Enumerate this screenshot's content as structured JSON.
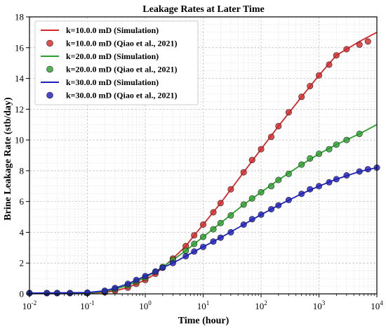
{
  "chart_data": {
    "type": "line",
    "title": "Leakage Rates at Later Time",
    "xlabel": "Time (hour)",
    "ylabel": "Brine Leakage Rate (stb/day)",
    "xscale": "log",
    "xlim": [
      0.01,
      10000
    ],
    "ylim": [
      0,
      18
    ],
    "x_ticks": [
      {
        "base": "10",
        "exp": "-2",
        "value": 0.01
      },
      {
        "base": "10",
        "exp": "-1",
        "value": 0.1
      },
      {
        "base": "10",
        "exp": "0",
        "value": 1
      },
      {
        "base": "10",
        "exp": "1",
        "value": 10
      },
      {
        "base": "10",
        "exp": "2",
        "value": 100
      },
      {
        "base": "10",
        "exp": "3",
        "value": 1000
      },
      {
        "base": "10",
        "exp": "4",
        "value": 10000
      }
    ],
    "y_ticks": [
      "0",
      "2",
      "4",
      "6",
      "8",
      "10",
      "12",
      "14",
      "16",
      "18"
    ],
    "grid": true,
    "legend_position": "top-left",
    "series": [
      {
        "name": "k=10.0.0 mD (Simulation)",
        "kind": "line",
        "color": "#d62728",
        "x": [
          0.01,
          0.1,
          0.2,
          0.3,
          0.5,
          0.7,
          1,
          1.5,
          2,
          3,
          5,
          7,
          10,
          20,
          50,
          100,
          200,
          500,
          1000,
          2000,
          5000,
          10000
        ],
        "y": [
          0.05,
          0.05,
          0.1,
          0.2,
          0.4,
          0.65,
          0.9,
          1.3,
          1.7,
          2.3,
          3.1,
          3.8,
          4.5,
          5.9,
          7.9,
          9.4,
          10.9,
          12.8,
          14.2,
          15.5,
          16.4,
          17.0
        ]
      },
      {
        "name": "k=10.0.0 mD (Qiao et al., 2021)",
        "kind": "scatter",
        "color": "#d62728",
        "x": [
          0.01,
          0.02,
          0.03,
          0.05,
          0.1,
          0.2,
          0.3,
          0.5,
          0.7,
          1,
          1.5,
          2,
          3,
          5,
          7,
          10,
          15,
          20,
          30,
          50,
          70,
          100,
          150,
          200,
          300,
          500,
          700,
          1000,
          1500,
          2000,
          3000,
          5000,
          7000
        ],
        "y": [
          0.05,
          0.05,
          0.05,
          0.05,
          0.05,
          0.1,
          0.2,
          0.4,
          0.65,
          0.9,
          1.3,
          1.7,
          2.3,
          3.1,
          3.8,
          4.5,
          5.3,
          5.9,
          6.8,
          7.9,
          8.7,
          9.4,
          10.2,
          10.9,
          11.8,
          12.8,
          13.5,
          14.2,
          14.9,
          15.5,
          15.9,
          16.2,
          16.4
        ]
      },
      {
        "name": "k=20.0.0 mD (Simulation)",
        "kind": "line",
        "color": "#2ca02c",
        "x": [
          0.01,
          0.1,
          0.2,
          0.3,
          0.5,
          0.7,
          1,
          1.5,
          2,
          3,
          5,
          7,
          10,
          20,
          50,
          100,
          200,
          500,
          1000,
          2000,
          5000,
          10000
        ],
        "y": [
          0.05,
          0.05,
          0.15,
          0.3,
          0.55,
          0.8,
          1.05,
          1.45,
          1.75,
          2.2,
          2.8,
          3.25,
          3.7,
          4.6,
          5.8,
          6.6,
          7.4,
          8.4,
          9.1,
          9.7,
          10.4,
          11.0
        ]
      },
      {
        "name": "k=20.0.0 mD (Qiao et al., 2021)",
        "kind": "scatter",
        "color": "#2ca02c",
        "x": [
          0.01,
          0.02,
          0.03,
          0.05,
          0.1,
          0.2,
          0.3,
          0.5,
          0.7,
          1,
          1.5,
          2,
          3,
          5,
          7,
          10,
          15,
          20,
          30,
          50,
          70,
          100,
          150,
          200,
          300,
          500,
          700,
          1000,
          1500,
          2000,
          3000,
          5000
        ],
        "y": [
          0.05,
          0.05,
          0.05,
          0.05,
          0.05,
          0.15,
          0.3,
          0.55,
          0.8,
          1.05,
          1.45,
          1.75,
          2.2,
          2.8,
          3.25,
          3.7,
          4.2,
          4.6,
          5.1,
          5.8,
          6.2,
          6.6,
          7.0,
          7.4,
          7.8,
          8.4,
          8.8,
          9.1,
          9.4,
          9.7,
          10.0,
          10.4
        ]
      },
      {
        "name": "k=30.0.0 mD (Simulation)",
        "kind": "line",
        "color": "#1f1fbf",
        "x": [
          0.01,
          0.1,
          0.2,
          0.3,
          0.5,
          0.7,
          1,
          1.5,
          2,
          3,
          5,
          7,
          10,
          20,
          50,
          100,
          200,
          500,
          1000,
          2000,
          5000,
          10000
        ],
        "y": [
          0.05,
          0.08,
          0.2,
          0.38,
          0.65,
          0.9,
          1.15,
          1.45,
          1.7,
          2.0,
          2.45,
          2.75,
          3.05,
          3.65,
          4.5,
          5.15,
          5.75,
          6.5,
          7.0,
          7.45,
          7.95,
          8.2
        ]
      },
      {
        "name": "k=30.0.0 mD (Qiao et al., 2021)",
        "kind": "scatter",
        "color": "#1f1fbf",
        "x": [
          0.01,
          0.02,
          0.03,
          0.05,
          0.1,
          0.2,
          0.3,
          0.5,
          0.7,
          1,
          1.5,
          2,
          3,
          5,
          7,
          10,
          15,
          20,
          30,
          50,
          70,
          100,
          150,
          200,
          300,
          500,
          700,
          1000,
          1500,
          2000,
          3000,
          5000,
          7000,
          10000
        ],
        "y": [
          0.05,
          0.05,
          0.05,
          0.05,
          0.08,
          0.2,
          0.38,
          0.65,
          0.9,
          1.15,
          1.45,
          1.7,
          2.0,
          2.45,
          2.75,
          3.05,
          3.4,
          3.65,
          4.0,
          4.5,
          4.85,
          5.15,
          5.5,
          5.75,
          6.1,
          6.5,
          6.8,
          7.0,
          7.25,
          7.45,
          7.7,
          7.95,
          8.1,
          8.2
        ]
      }
    ]
  }
}
